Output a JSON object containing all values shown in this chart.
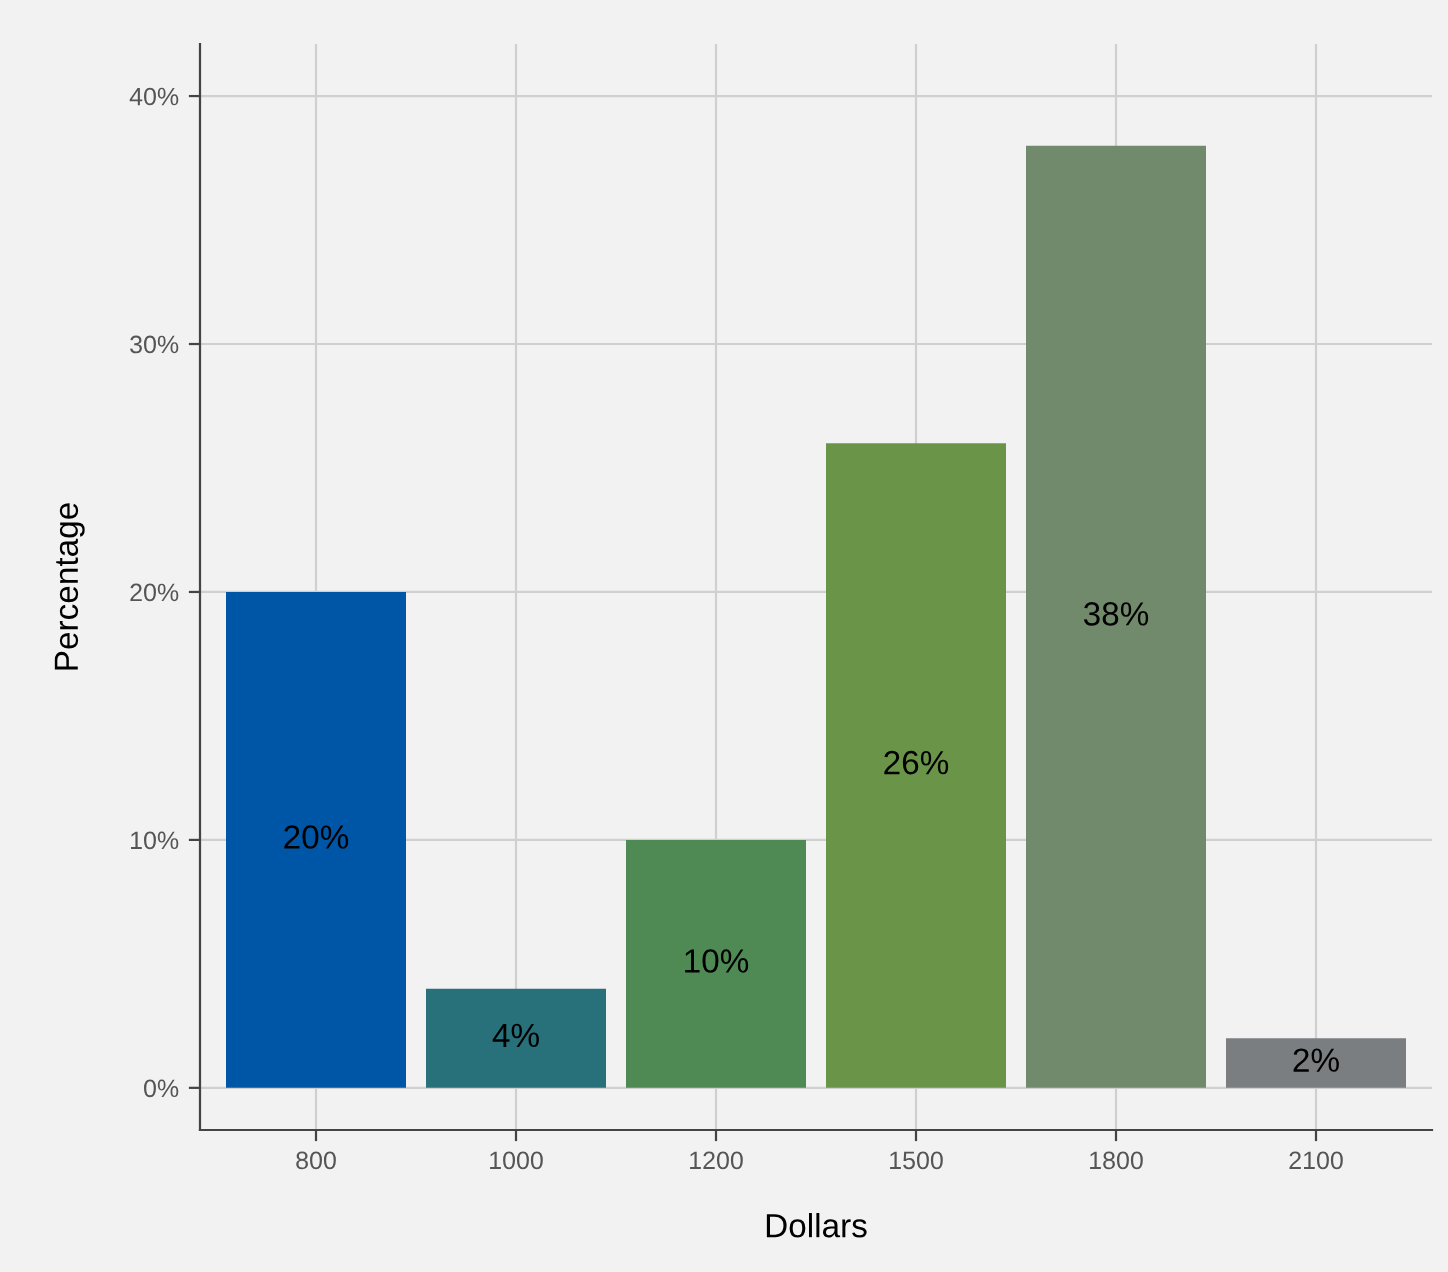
{
  "chart_data": {
    "type": "bar",
    "xlabel": "Dollars",
    "ylabel": "Percentage",
    "categories": [
      "800",
      "1000",
      "1200",
      "1500",
      "1800",
      "2100"
    ],
    "values": [
      20,
      4,
      10,
      26,
      38,
      2
    ],
    "colors": [
      "#0056a6",
      "#28717b",
      "#4f8a55",
      "#6a9448",
      "#718a6b",
      "#7a7e80"
    ],
    "value_labels": [
      "20%",
      "4%",
      "10%",
      "26%",
      "38%",
      "2%"
    ],
    "ylim": [
      -1.7,
      42.1
    ],
    "yticks": [
      {
        "value": 0,
        "label": "0%"
      },
      {
        "value": 10,
        "label": "10%"
      },
      {
        "value": 20,
        "label": "20%"
      },
      {
        "value": 30,
        "label": "30%"
      },
      {
        "value": 40,
        "label": "40%"
      }
    ],
    "grid": true,
    "legend": false
  }
}
